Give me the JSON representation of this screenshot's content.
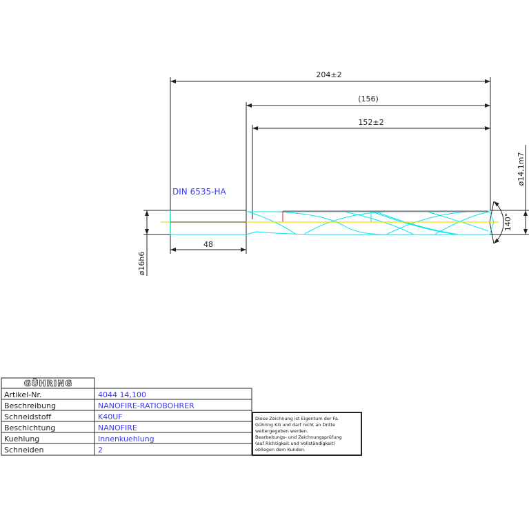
{
  "drawing": {
    "standard": "DIN 6535-HA",
    "dimensions": {
      "overall_length": "204±2",
      "flute_length_ref": "(156)",
      "cutting_length": "152±2",
      "shank_length": "48",
      "shank_diameter": "ø16h6",
      "cutting_diameter": "ø14,1m7",
      "point_angle": "140°"
    },
    "colors": {
      "body": "#00e5ee",
      "centerline": "#ffd700",
      "margin": "#e02020",
      "dimension": "#222222",
      "value_text": "#3a3aff"
    }
  },
  "title_block": {
    "logo": "GÜHRING",
    "rows": [
      {
        "label": "Artikel-Nr.",
        "value": "4044 14,100"
      },
      {
        "label": "Beschreibung",
        "value": "NANOFIRE-RATIOBOHRER"
      },
      {
        "label": "Schneidstoff",
        "value": "K40UF"
      },
      {
        "label": "Beschichtung",
        "value": "NANOFIRE"
      },
      {
        "label": "Kuehlung",
        "value": "Innenkuehlung"
      },
      {
        "label": "Schneiden",
        "value": "2"
      }
    ],
    "note_lines": [
      "Diese Zeichnung ist Eigentum der Fa.",
      "Gühring KG und darf nicht an Dritte",
      "weitergegeben werden.",
      "Bearbeitungs- und Zeichnungsprüfung",
      "(auf Richtigkeit und Vollständigkeit)",
      "obliegen dem Kunden."
    ]
  }
}
